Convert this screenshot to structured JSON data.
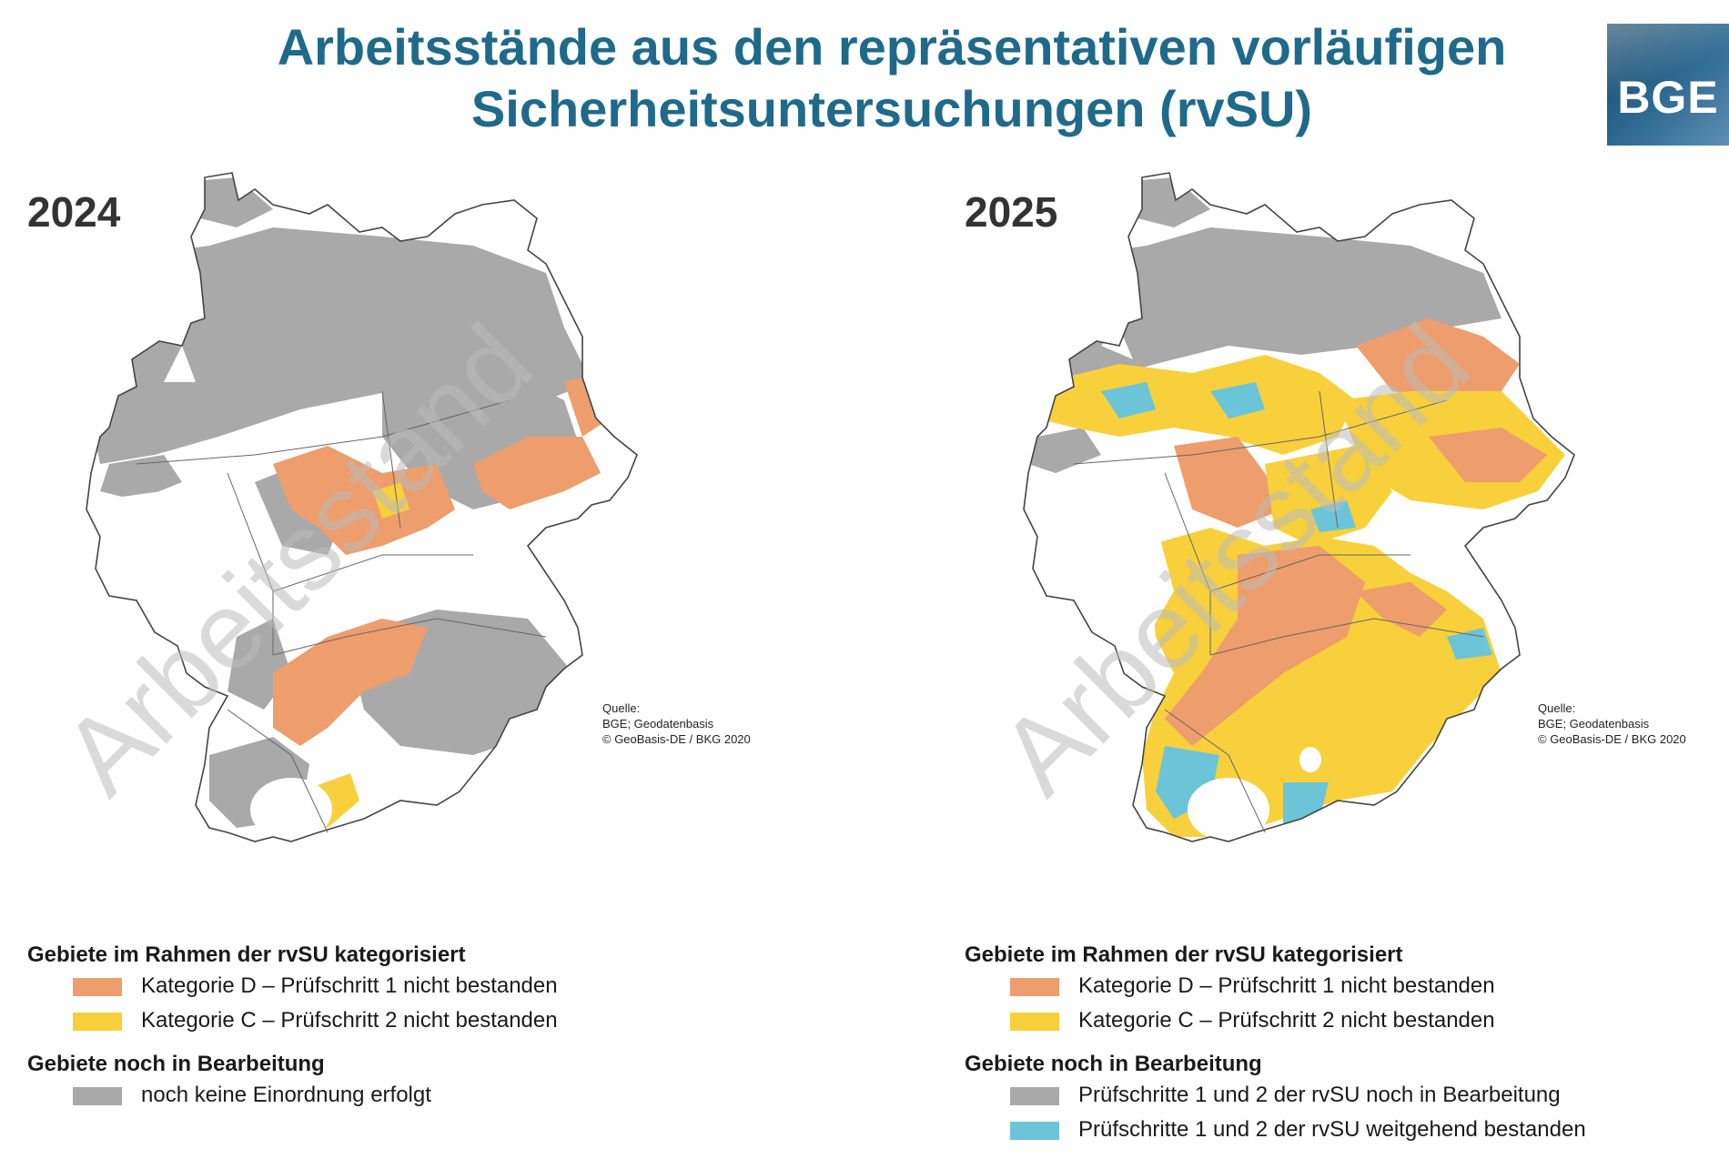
{
  "title": {
    "line1": "Arbeitsstände aus den repräsentativen vorläufigen",
    "line2": "Sicherheitsuntersuchungen (rvSU)"
  },
  "logo": {
    "text": "BGE",
    "color": "#2a5f86"
  },
  "watermark": "Arbeitsstand",
  "colors": {
    "kategorie_d": "#ee9d6c",
    "kategorie_c": "#f7d03c",
    "in_bearbeitung": "#a9a9a9",
    "bestanden": "#6cc4d9",
    "title": "#1f6a8a"
  },
  "maps": [
    {
      "year": "2024",
      "source": [
        "Quelle:",
        "BGE; Geodatenbasis",
        "© GeoBasis-DE / BKG 2020"
      ],
      "legend": {
        "heading1": "Gebiete im Rahmen der rvSU kategorisiert",
        "items1": [
          {
            "label": "Kategorie D – Prüfschritt 1 nicht bestanden",
            "color": "#ee9d6c"
          },
          {
            "label": "Kategorie C – Prüfschritt 2 nicht bestanden",
            "color": "#f7d03c"
          }
        ],
        "heading2": "Gebiete noch in Bearbeitung",
        "items2": [
          {
            "label": "noch keine Einordnung erfolgt",
            "color": "#a9a9a9"
          }
        ]
      }
    },
    {
      "year": "2025",
      "source": [
        "Quelle:",
        "BGE; Geodatenbasis",
        "© GeoBasis-DE / BKG 2020"
      ],
      "legend": {
        "heading1": "Gebiete im Rahmen der rvSU kategorisiert",
        "items1": [
          {
            "label": "Kategorie D – Prüfschritt 1 nicht bestanden",
            "color": "#ee9d6c"
          },
          {
            "label": "Kategorie C – Prüfschritt 2 nicht bestanden",
            "color": "#f7d03c"
          }
        ],
        "heading2": "Gebiete noch in Bearbeitung",
        "items2": [
          {
            "label": "Prüfschritte 1 und 2 der rvSU noch in Bearbeitung",
            "color": "#a9a9a9"
          },
          {
            "label": "Prüfschritte 1 und 2 der rvSU weitgehend bestanden",
            "color": "#6cc4d9"
          }
        ]
      }
    }
  ]
}
